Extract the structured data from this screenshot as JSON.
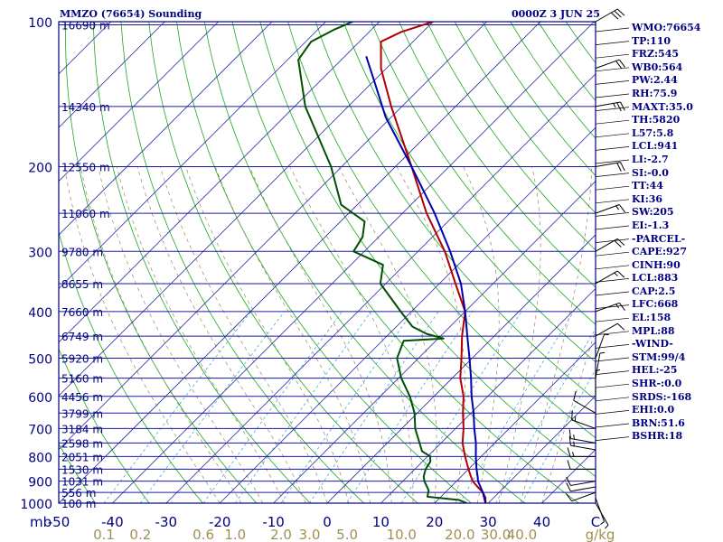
{
  "header": {
    "station": "MMZO (76654) Sounding",
    "time": "0000Z  3 JUN 25"
  },
  "indices": [
    "WMO:76654",
    "TP:110",
    "FRZ:545",
    "WB0:564",
    "PW:2.44",
    "RH:75.9",
    "MAXT:35.0",
    "TH:5820",
    "L57:5.8",
    "LCL:941",
    "LI:-2.7",
    "SI:-0.0",
    "TT:44",
    "KI:36",
    "SW:205",
    "EI:-1.3",
    "-PARCEL-",
    "CAPE:927",
    "CINH:90",
    "LCL:883",
    "CAP:2.5",
    "LFC:668",
    "EL:158",
    "MPL:88",
    "-WIND-",
    "STM:99/4",
    "HEL:-25",
    "SHR-:0.0",
    "SRDS:-168",
    "EHI:0.0",
    "BRN:51.6",
    "BSHR:18"
  ],
  "chart_data": {
    "type": "line",
    "subtype": "skew-T log-P",
    "pressure_unit_label": "mb",
    "mixing_ratio_unit_label": "g/kg",
    "xlim": [
      -50,
      50
    ],
    "ylim": [
      1000,
      100
    ],
    "pressure_ticks": [
      {
        "p": 100,
        "label": "100"
      },
      {
        "p": 200,
        "label": "200"
      },
      {
        "p": 300,
        "label": "300"
      },
      {
        "p": 400,
        "label": "400"
      },
      {
        "p": 500,
        "label": "500"
      },
      {
        "p": 600,
        "label": "600"
      },
      {
        "p": 700,
        "label": "700"
      },
      {
        "p": 800,
        "label": "800"
      },
      {
        "p": 900,
        "label": "900"
      },
      {
        "p": 1000,
        "label": "1000"
      }
    ],
    "temperature_ticks": [
      "-50",
      "-40",
      "-30",
      "-20",
      "-10",
      "0",
      "10",
      "20",
      "30",
      "40",
      "C"
    ],
    "height_labels": [
      {
        "p": 101.5,
        "label": "16690 m"
      },
      {
        "p": 150,
        "label": "14340 m"
      },
      {
        "p": 200,
        "label": "12550 m"
      },
      {
        "p": 250,
        "label": "11060 m"
      },
      {
        "p": 300,
        "label": "9780 m"
      },
      {
        "p": 350,
        "label": "8655 m"
      },
      {
        "p": 400,
        "label": "7660 m"
      },
      {
        "p": 450,
        "label": "6749 m"
      },
      {
        "p": 500,
        "label": "5920 m"
      },
      {
        "p": 550,
        "label": "5160 m"
      },
      {
        "p": 600,
        "label": "4456 m"
      },
      {
        "p": 650,
        "label": "3799 m"
      },
      {
        "p": 700,
        "label": "3184 m"
      },
      {
        "p": 750,
        "label": "2598 m"
      },
      {
        "p": 800,
        "label": "2051 m"
      },
      {
        "p": 850,
        "label": "1530 m"
      },
      {
        "p": 900,
        "label": "1031 m"
      },
      {
        "p": 950,
        "label": "556 m"
      },
      {
        "p": 1000,
        "label": "100 m"
      }
    ],
    "mixing_ratio_lines": [
      {
        "w": 0.1,
        "label": "0.1"
      },
      {
        "w": 0.2,
        "label": "0.2"
      },
      {
        "w": 0.6,
        "label": "0.6"
      },
      {
        "w": 1.0,
        "label": "1.0"
      },
      {
        "w": 2.0,
        "label": "2.0"
      },
      {
        "w": 3.0,
        "label": "3.0"
      },
      {
        "w": 5.0,
        "label": "5.0"
      },
      {
        "w": 10.0,
        "label": "10.0"
      },
      {
        "w": 20.0,
        "label": "20.0"
      },
      {
        "w": 30.0,
        "label": "30.0"
      },
      {
        "w": 40.0,
        "label": "40.0"
      }
    ],
    "series": [
      {
        "role": "temperature",
        "color": "#b00000",
        "points": [
          {
            "p": 1000,
            "t": 29.5
          },
          {
            "p": 975,
            "t": 28.5
          },
          {
            "p": 950,
            "t": 27.0
          },
          {
            "p": 925,
            "t": 25.0
          },
          {
            "p": 900,
            "t": 23.0
          },
          {
            "p": 875,
            "t": 21.5
          },
          {
            "p": 850,
            "t": 20.0
          },
          {
            "p": 800,
            "t": 17.0
          },
          {
            "p": 750,
            "t": 14.0
          },
          {
            "p": 700,
            "t": 11.5
          },
          {
            "p": 650,
            "t": 8.5
          },
          {
            "p": 600,
            "t": 5.5
          },
          {
            "p": 550,
            "t": 1.5
          },
          {
            "p": 500,
            "t": -2.0
          },
          {
            "p": 450,
            "t": -6.0
          },
          {
            "p": 400,
            "t": -10.0
          },
          {
            "p": 350,
            "t": -17.0
          },
          {
            "p": 300,
            "t": -25.0
          },
          {
            "p": 250,
            "t": -35.5
          },
          {
            "p": 200,
            "t": -47.0
          },
          {
            "p": 150,
            "t": -62.0
          },
          {
            "p": 125,
            "t": -71.0
          },
          {
            "p": 110,
            "t": -76.0
          },
          {
            "p": 105,
            "t": -74.0
          },
          {
            "p": 100,
            "t": -70.0
          }
        ]
      },
      {
        "role": "dewpoint",
        "color": "#005000",
        "points": [
          {
            "p": 1000,
            "t": 26.0
          },
          {
            "p": 985,
            "t": 24.0
          },
          {
            "p": 970,
            "t": 17.5
          },
          {
            "p": 940,
            "t": 16.5
          },
          {
            "p": 900,
            "t": 14.0
          },
          {
            "p": 880,
            "t": 13.0
          },
          {
            "p": 850,
            "t": 12.0
          },
          {
            "p": 820,
            "t": 11.5
          },
          {
            "p": 800,
            "t": 10.5
          },
          {
            "p": 780,
            "t": 8.0
          },
          {
            "p": 700,
            "t": 2.5
          },
          {
            "p": 650,
            "t": -0.5
          },
          {
            "p": 600,
            "t": -4.5
          },
          {
            "p": 550,
            "t": -9.5
          },
          {
            "p": 500,
            "t": -14.0
          },
          {
            "p": 460,
            "t": -16.0
          },
          {
            "p": 455,
            "t": -9.0
          },
          {
            "p": 445,
            "t": -13.0
          },
          {
            "p": 430,
            "t": -17.0
          },
          {
            "p": 400,
            "t": -22.0
          },
          {
            "p": 350,
            "t": -31.0
          },
          {
            "p": 320,
            "t": -34.0
          },
          {
            "p": 300,
            "t": -42.0
          },
          {
            "p": 280,
            "t": -43.0
          },
          {
            "p": 260,
            "t": -45.5
          },
          {
            "p": 240,
            "t": -53.0
          },
          {
            "p": 200,
            "t": -62.0
          },
          {
            "p": 150,
            "t": -78.0
          },
          {
            "p": 120,
            "t": -88.0
          },
          {
            "p": 110,
            "t": -89.0
          },
          {
            "p": 104,
            "t": -87.0
          },
          {
            "p": 100,
            "t": -85.0
          }
        ]
      },
      {
        "role": "parcel",
        "color": "#0000b0",
        "points": [
          {
            "p": 1000,
            "t": 29.5
          },
          {
            "p": 950,
            "t": 27.0
          },
          {
            "p": 900,
            "t": 24.0
          },
          {
            "p": 883,
            "t": 23.2
          },
          {
            "p": 850,
            "t": 21.5
          },
          {
            "p": 800,
            "t": 19.0
          },
          {
            "p": 750,
            "t": 16.5
          },
          {
            "p": 700,
            "t": 13.5
          },
          {
            "p": 650,
            "t": 10.5
          },
          {
            "p": 600,
            "t": 7.0
          },
          {
            "p": 550,
            "t": 3.5
          },
          {
            "p": 500,
            "t": -0.5
          },
          {
            "p": 450,
            "t": -5.0
          },
          {
            "p": 400,
            "t": -10.0
          },
          {
            "p": 350,
            "t": -16.0
          },
          {
            "p": 300,
            "t": -24.0
          },
          {
            "p": 250,
            "t": -34.0
          },
          {
            "p": 200,
            "t": -47.0
          },
          {
            "p": 158,
            "t": -61.0
          },
          {
            "p": 130,
            "t": -71.0
          },
          {
            "p": 118,
            "t": -76.0
          }
        ]
      }
    ],
    "winds": [
      {
        "p": 1000,
        "dir": 150,
        "spd": 5
      },
      {
        "p": 975,
        "dir": 160,
        "spd": 5
      },
      {
        "p": 950,
        "dir": 250,
        "spd": 10
      },
      {
        "p": 925,
        "dir": 260,
        "spd": 10
      },
      {
        "p": 900,
        "dir": 260,
        "spd": 10
      },
      {
        "p": 850,
        "dir": 270,
        "spd": 10
      },
      {
        "p": 800,
        "dir": 270,
        "spd": 15
      },
      {
        "p": 775,
        "dir": 280,
        "spd": 15
      },
      {
        "p": 750,
        "dir": 280,
        "spd": 15
      },
      {
        "p": 700,
        "dir": 290,
        "spd": 15
      },
      {
        "p": 650,
        "dir": 300,
        "spd": 10
      },
      {
        "p": 600,
        "dir": 0,
        "spd": 5
      },
      {
        "p": 550,
        "dir": 10,
        "spd": 5
      },
      {
        "p": 500,
        "dir": 20,
        "spd": 5
      },
      {
        "p": 450,
        "dir": 60,
        "spd": 10
      },
      {
        "p": 400,
        "dir": 70,
        "spd": 15
      },
      {
        "p": 350,
        "dir": 60,
        "spd": 15
      },
      {
        "p": 300,
        "dir": 60,
        "spd": 20
      },
      {
        "p": 250,
        "dir": 70,
        "spd": 15
      },
      {
        "p": 200,
        "dir": 80,
        "spd": 20
      },
      {
        "p": 150,
        "dir": 80,
        "spd": 25
      },
      {
        "p": 125,
        "dir": 70,
        "spd": 20
      },
      {
        "p": 100,
        "dir": 60,
        "spd": 30
      }
    ]
  }
}
